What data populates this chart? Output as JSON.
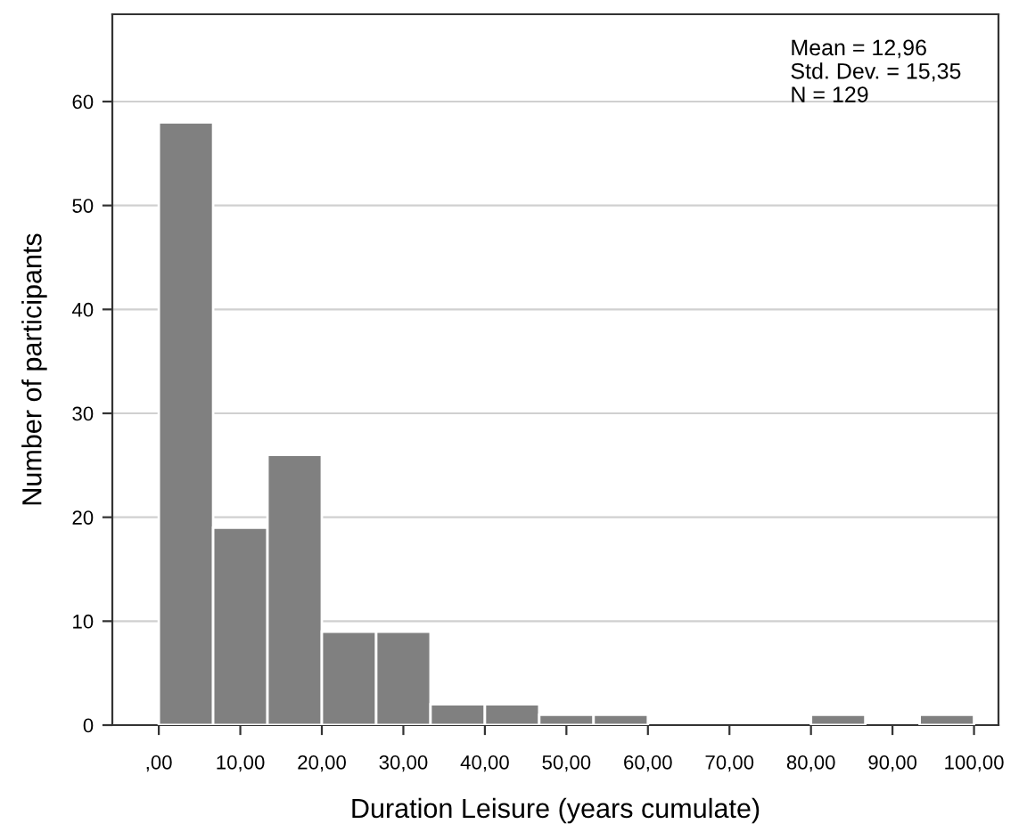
{
  "chart_data": {
    "type": "histogram",
    "xlabel": "Duration Leisure (years cumulate)",
    "ylabel": "Number of participants",
    "bins": [
      0,
      6.667,
      13.333,
      20,
      26.667,
      33.333,
      40,
      46.667,
      53.333,
      60,
      66.667,
      73.333,
      80,
      86.667,
      93.333,
      100
    ],
    "values": [
      58,
      19,
      26,
      9,
      9,
      2,
      2,
      1,
      1,
      0,
      0,
      0,
      1,
      0,
      1
    ],
    "color": "#808080",
    "xlim": [
      -5.7,
      103
    ],
    "ylim": [
      0,
      68.4
    ],
    "xticks": [
      {
        "value": 0,
        "label": ",00"
      },
      {
        "value": 10,
        "label": "10,00"
      },
      {
        "value": 20,
        "label": "20,00"
      },
      {
        "value": 30,
        "label": "30,00"
      },
      {
        "value": 40,
        "label": "40,00"
      },
      {
        "value": 50,
        "label": "50,00"
      },
      {
        "value": 60,
        "label": "60,00"
      },
      {
        "value": 70,
        "label": "70,00"
      },
      {
        "value": 80,
        "label": "80,00"
      },
      {
        "value": 90,
        "label": "90,00"
      },
      {
        "value": 100,
        "label": "100,00"
      }
    ],
    "yticks": [
      0,
      10,
      20,
      30,
      40,
      50,
      60
    ],
    "grid": "y",
    "annotations": [
      "Mean = 12,96",
      "Std. Dev. = 15,35",
      "N = 129"
    ]
  }
}
